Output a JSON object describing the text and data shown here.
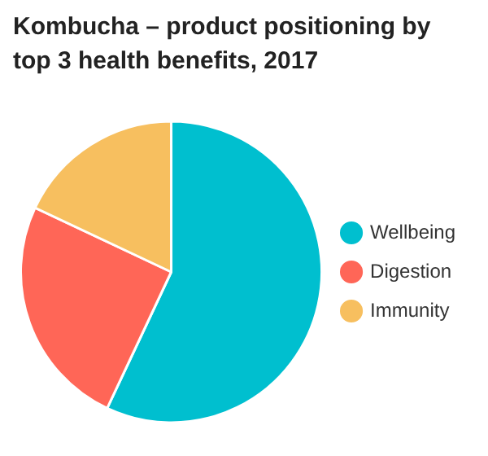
{
  "chart_data": {
    "type": "pie",
    "title": "Kombucha – product positioning by top 3 health benefits, 2017",
    "categories": [
      "Wellbeing",
      "Digestion",
      "Immunity"
    ],
    "values": [
      57,
      25,
      18
    ],
    "colors": [
      "#00bfcf",
      "#ff6657",
      "#f7bf5f"
    ],
    "legend": "right"
  }
}
